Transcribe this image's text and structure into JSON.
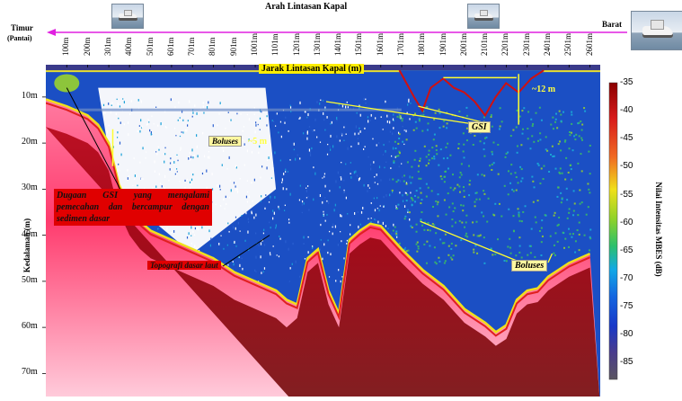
{
  "chart_data": {
    "type": "heatmap",
    "title": "",
    "top_axis": {
      "title": "Arah Lintasan Kapal",
      "left_label": "Timur",
      "left_sublabel": "(Pantai)",
      "right_label": "Barat",
      "inner_title": "Jarak Lintasan Kapal (m)",
      "ticks": [
        "100m",
        "200m",
        "301m",
        "400m",
        "501m",
        "601m",
        "701m",
        "801m",
        "901m",
        "1001m",
        "1101m",
        "1201m",
        "1301m",
        "1401m",
        "1501m",
        "1601m",
        "1701m",
        "1801m",
        "1901m",
        "2001m",
        "2101m",
        "2201m",
        "2301m",
        "2401m",
        "2501m",
        "2601m"
      ]
    },
    "ylabel": "Kedalaman (m)",
    "y_ticks": [
      "10m",
      "20m",
      "30m",
      "40m",
      "50m",
      "60m",
      "70m"
    ],
    "y_values": [
      10,
      20,
      30,
      40,
      50,
      60,
      70
    ],
    "colorbar": {
      "label": "Nilai Intensitas MBES (dB)",
      "ticks": [
        -35,
        -40,
        -45,
        -50,
        -55,
        -60,
        -65,
        -70,
        -75,
        -80,
        -85
      ],
      "range": [
        -88,
        -35
      ],
      "colors": [
        "#5a5560",
        "#4a3c8c",
        "#1838c8",
        "#1466e0",
        "#12a8e6",
        "#2cc06c",
        "#8ed22a",
        "#f0e01a",
        "#f06a22",
        "#d81a1a",
        "#8a0000"
      ]
    },
    "seafloor_profile": {
      "x": [
        0,
        100,
        200,
        250,
        301,
        350,
        400,
        450,
        501,
        601,
        701,
        801,
        901,
        1001,
        1101,
        1151,
        1201,
        1251,
        1301,
        1351,
        1401,
        1451,
        1501,
        1551,
        1601,
        1701,
        1801,
        1901,
        2001,
        2101,
        2151,
        2201,
        2251,
        2301,
        2351,
        2401,
        2501,
        2601
      ],
      "y": [
        10.5,
        12,
        14,
        16,
        20,
        29,
        34,
        37,
        39,
        41,
        43,
        45,
        48,
        50,
        52,
        54,
        55,
        45,
        43,
        52,
        57,
        41,
        39,
        37.5,
        38,
        43,
        47.5,
        51,
        56,
        59,
        61,
        59.5,
        54,
        52,
        51.5,
        49,
        46,
        44
      ]
    },
    "annotations": [
      {
        "text": "Dugaan GSI yang mengalami pemecahan dan bercampur dengan sedimen dasar",
        "style": "red-box"
      },
      {
        "text": "Topografi dasar laut",
        "style": "red-box"
      },
      {
        "text": "Boluses",
        "style": "yellow-box"
      },
      {
        "text": "Boluses",
        "style": "yellow-box"
      },
      {
        "text": "GSI",
        "style": "yellow-box"
      },
      {
        "text": "~5 m",
        "style": "yellow-text"
      },
      {
        "text": "~12 m",
        "style": "yellow-text"
      }
    ]
  },
  "labels": {
    "top_title": "Arah Lintasan Kapal",
    "left": "Timur",
    "left_sub": "(Pantai)",
    "right": "Barat",
    "inner_title": "Jarak Lintasan Kapal (m)",
    "ylabel": "Kedalaman (m)",
    "cbar_label": "Nilai Intensitas MBES (dB)",
    "gsi_note": "Dugaan GSI yang mengalami pemecahan dan bercampur dengan sedimen dasar",
    "topo_note": "Topografi dasar laut",
    "boluses_1": "Boluses",
    "boluses_2": "Boluses",
    "gsi": "GSI",
    "height_5": "~5 m",
    "height_12": "~12 m"
  }
}
